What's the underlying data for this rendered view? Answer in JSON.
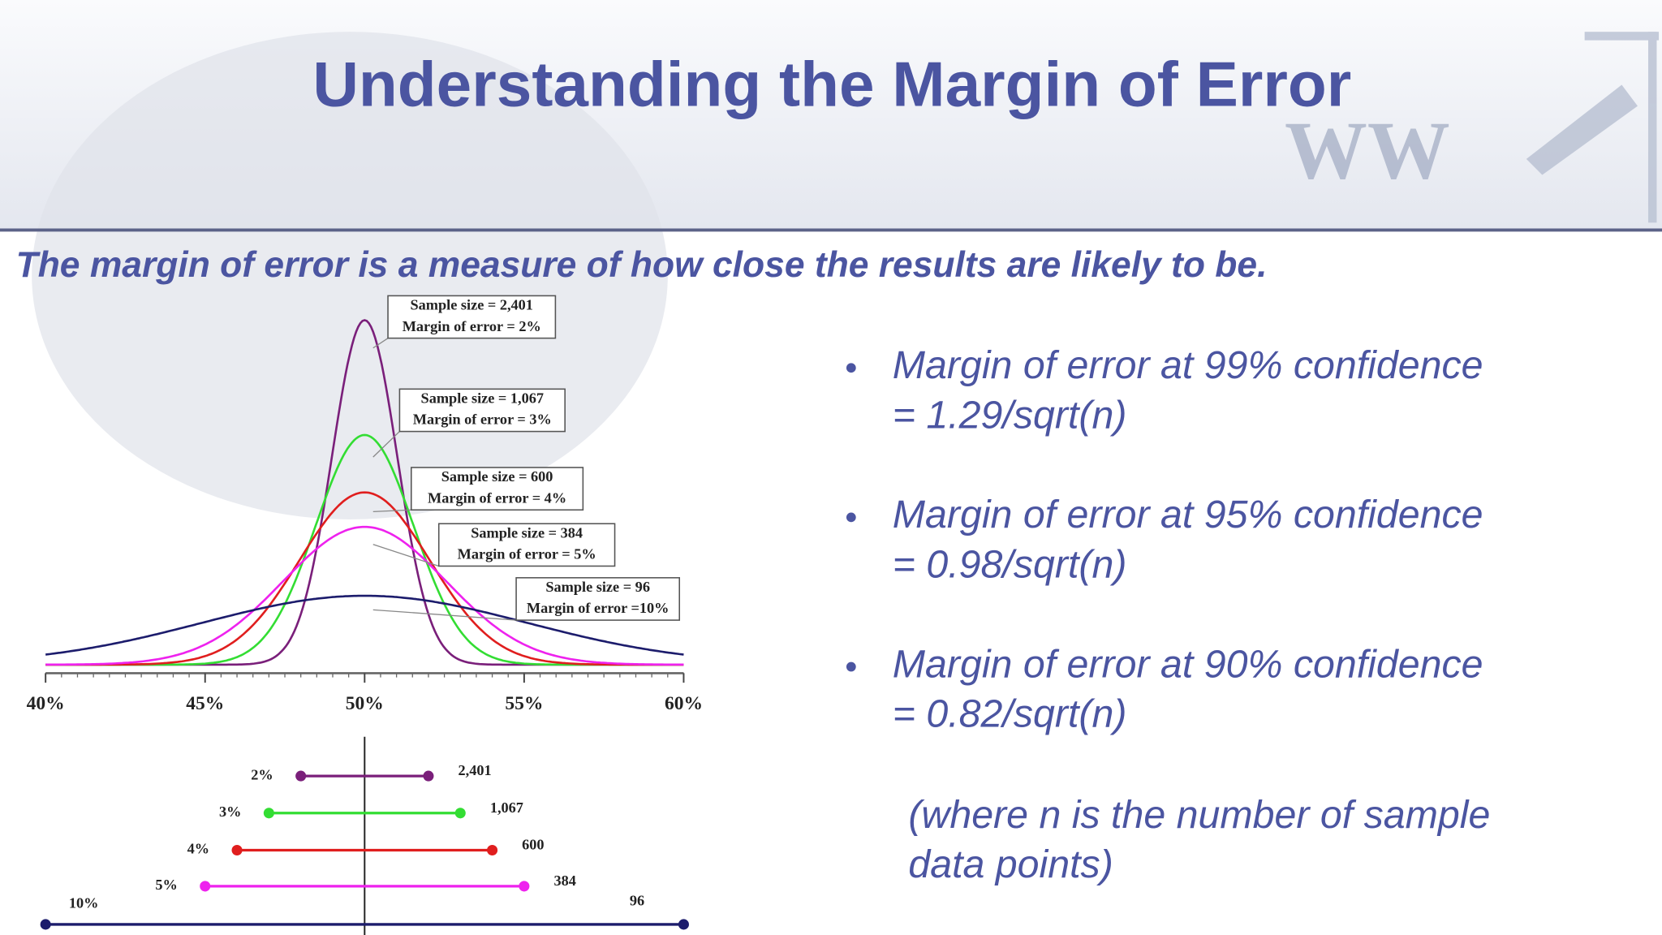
{
  "header": {
    "title": "Understanding the Margin of Error"
  },
  "subtitle": "The margin of error is a measure of how close the results are likely to be.",
  "bullets": [
    {
      "text": "Margin of error at 99% confidence",
      "formula": "= 1.29/sqrt(n)"
    },
    {
      "text": "Margin of error at 95% confidence",
      "formula": "= 0.98/sqrt(n)"
    },
    {
      "text": "Margin of error at 90% confidence",
      "formula": "= 0.82/sqrt(n)"
    }
  ],
  "note": [
    "(where n is the number of sample",
    "data points)"
  ],
  "chart_data": {
    "type": "density",
    "xlim": [
      40,
      60
    ],
    "xticks": [
      {
        "value": 40,
        "label": "40%"
      },
      {
        "value": 45,
        "label": "45%"
      },
      {
        "value": 50,
        "label": "50%"
      },
      {
        "value": 55,
        "label": "55%"
      },
      {
        "value": 60,
        "label": "60%"
      }
    ],
    "series": [
      {
        "name": "Sample size = 2,401",
        "label": "Margin of error = 2%",
        "color": "#7a1f7a",
        "margin": 2,
        "margin_label": "2%",
        "sample_size": 2401,
        "sample_label": "2,401"
      },
      {
        "name": "Sample size = 1,067",
        "label": "Margin of error = 3%",
        "color": "#33dd33",
        "margin": 3,
        "margin_label": "3%",
        "sample_size": 1067,
        "sample_label": "1,067"
      },
      {
        "name": "Sample size = 600",
        "label": "Margin of error = 4%",
        "color": "#e01e1e",
        "margin": 4,
        "margin_label": "4%",
        "sample_size": 600,
        "sample_label": "600"
      },
      {
        "name": "Sample size = 384",
        "label": "Margin of error = 5%",
        "color": "#ee22ee",
        "margin": 5,
        "margin_label": "5%",
        "sample_size": 384,
        "sample_label": "384"
      },
      {
        "name": "Sample size = 96",
        "label": "Margin of error =10%",
        "color": "#1c1c6c",
        "margin": 10,
        "margin_label": "10%",
        "sample_size": 96,
        "sample_label": "96"
      }
    ]
  }
}
